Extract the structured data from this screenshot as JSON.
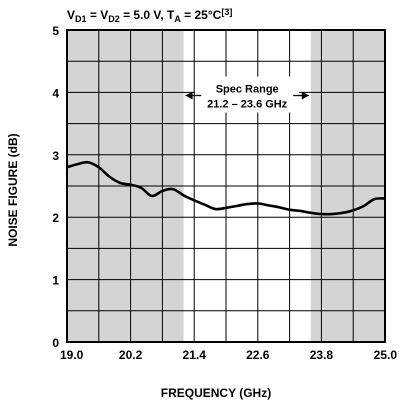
{
  "chart_data": {
    "type": "line",
    "title_parts": {
      "v": "V",
      "d1": "D1",
      "eq1": " = V",
      "d2": "D2",
      "eq2": " = 5.0 V, T",
      "a": "A",
      "eq3": " = 25°C",
      "note": "[3]"
    },
    "xlabel": "FREQUENCY (GHz)",
    "ylabel": "NOISE FIGURE (dB)",
    "xlim": [
      19.0,
      25.0
    ],
    "ylim": [
      0,
      5
    ],
    "x_ticks": [
      "19.0",
      "20.2",
      "21.4",
      "22.6",
      "23.8",
      "25.0"
    ],
    "x_tick_values": [
      19.0,
      20.2,
      21.4,
      22.6,
      23.8,
      25.0
    ],
    "y_ticks": [
      "0",
      "1",
      "2",
      "3",
      "4",
      "5"
    ],
    "y_tick_values": [
      0,
      1,
      2,
      3,
      4,
      5
    ],
    "x_minor_step": 0.6,
    "y_minor_step": 0.5,
    "grid": true,
    "shaded_regions": [
      {
        "from": 19.0,
        "to": 21.2,
        "color": "#d4d4d4"
      },
      {
        "from": 23.6,
        "to": 25.0,
        "color": "#d4d4d4"
      }
    ],
    "annotation": {
      "line1": "Spec Range",
      "line2": "21.2 – 23.6 GHz",
      "from": 21.2,
      "to": 23.6,
      "y": 3.95
    },
    "series": [
      {
        "x": [
          19.0,
          19.2,
          19.4,
          19.6,
          19.8,
          20.0,
          20.2,
          20.4,
          20.6,
          20.8,
          21.0,
          21.2,
          21.4,
          21.6,
          21.8,
          22.0,
          22.2,
          22.4,
          22.6,
          22.8,
          23.0,
          23.2,
          23.4,
          23.6,
          23.8,
          24.0,
          24.2,
          24.4,
          24.6,
          24.8,
          25.0
        ],
        "y": [
          2.8,
          2.85,
          2.88,
          2.8,
          2.65,
          2.55,
          2.52,
          2.47,
          2.34,
          2.42,
          2.45,
          2.35,
          2.27,
          2.2,
          2.13,
          2.15,
          2.18,
          2.21,
          2.22,
          2.19,
          2.16,
          2.12,
          2.1,
          2.07,
          2.05,
          2.05,
          2.07,
          2.11,
          2.18,
          2.29,
          2.3
        ],
        "color": "#000000"
      }
    ]
  }
}
